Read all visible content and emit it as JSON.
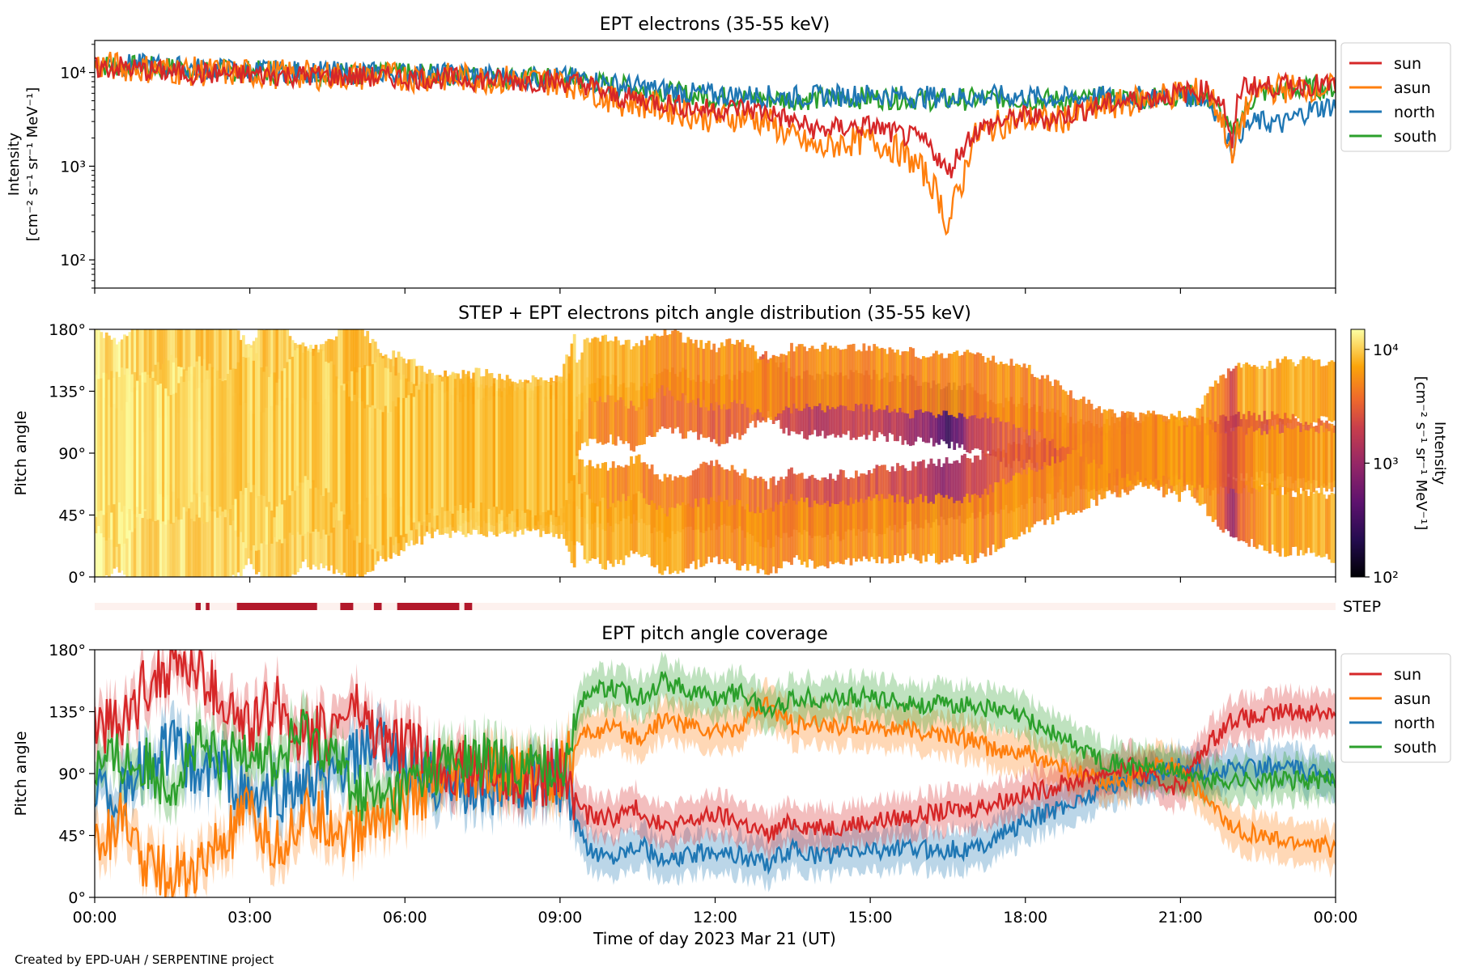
{
  "colors": {
    "sun": "#d62728",
    "asun": "#ff7f0e",
    "north": "#1f77b4",
    "south": "#2ca02c",
    "step_bar": "#b2182b",
    "step_bg": "#fdf1ee"
  },
  "footer": "Created by EPD-UAH / SERPENTINE project",
  "chart_data": [
    {
      "type": "line",
      "title": "EPT electrons (35-55 keV)",
      "ylabel_line1": "Intensity",
      "ylabel_line2": "[cm⁻² s⁻¹ sr⁻¹ MeV⁻¹]",
      "yscale": "log",
      "ylim": [
        50,
        22000
      ],
      "yticks": [
        100,
        1000,
        10000
      ],
      "ytick_labels": [
        "10²",
        "10³",
        "10⁴"
      ],
      "xlim": [
        0,
        24
      ],
      "legend_placement": "right-outside",
      "series": [
        {
          "name": "sun",
          "color": "#d62728",
          "x": [
            0,
            0.5,
            1,
            1.5,
            2,
            3,
            4,
            5,
            6,
            7,
            8,
            9,
            9.5,
            10,
            10.5,
            11,
            11.5,
            12,
            12.5,
            13,
            13.5,
            14,
            14.5,
            15,
            15.5,
            16,
            16.3,
            16.5,
            16.8,
            17,
            17.5,
            18,
            18.5,
            19,
            19.5,
            20,
            20.5,
            21,
            21.5,
            21.8,
            22,
            22.2,
            22.5,
            23,
            23.5,
            24
          ],
          "y": [
            11000,
            11500,
            10500,
            10000,
            9800,
            9500,
            9300,
            9000,
            8800,
            8600,
            8200,
            8000,
            7500,
            5500,
            5200,
            4800,
            4200,
            4000,
            4200,
            3800,
            3000,
            2400,
            2600,
            2700,
            2200,
            1900,
            1300,
            800,
            1600,
            2300,
            3000,
            3400,
            3200,
            3800,
            4500,
            5000,
            5500,
            6000,
            6500,
            5000,
            1300,
            7500,
            7000,
            7200,
            7400,
            7200
          ]
        },
        {
          "name": "asun",
          "color": "#ff7f0e",
          "x": [
            0,
            1,
            2,
            3,
            4,
            5,
            6,
            7,
            8,
            9,
            9.5,
            10,
            10.5,
            11,
            11.5,
            12,
            12.5,
            13,
            13.5,
            14,
            14.5,
            15,
            15.5,
            16,
            16.3,
            16.5,
            16.8,
            17,
            17.5,
            18,
            18.5,
            19,
            19.5,
            20,
            20.5,
            21,
            21.5,
            22,
            22.5,
            23,
            23.5,
            24
          ],
          "y": [
            12000,
            11000,
            10200,
            9800,
            9500,
            9200,
            9000,
            8800,
            8400,
            8000,
            7000,
            5000,
            4700,
            4200,
            3600,
            3200,
            3400,
            3000,
            2000,
            1500,
            1800,
            1900,
            1500,
            900,
            500,
            200,
            700,
            2000,
            2800,
            3200,
            3000,
            3500,
            4200,
            4800,
            5500,
            6000,
            6300,
            1000,
            6500,
            6800,
            7000,
            6800
          ]
        },
        {
          "name": "north",
          "color": "#1f77b4",
          "x": [
            0,
            1,
            2,
            3,
            4,
            5,
            6,
            7,
            8,
            9,
            9.5,
            10,
            10.5,
            11,
            11.5,
            12,
            12.5,
            13,
            13.5,
            14,
            14.5,
            15,
            15.5,
            16,
            16.5,
            17,
            17.5,
            18,
            18.5,
            19,
            19.5,
            20,
            20.5,
            21,
            21.5,
            22,
            22.2,
            22.5,
            23,
            23.5,
            24
          ],
          "y": [
            12500,
            12000,
            11000,
            10500,
            10200,
            10000,
            9800,
            9500,
            9000,
            8800,
            8500,
            7500,
            7000,
            6500,
            6000,
            5800,
            5700,
            5600,
            5500,
            5600,
            5700,
            5800,
            5600,
            5500,
            5500,
            5400,
            5600,
            5500,
            5400,
            5300,
            5500,
            5400,
            5600,
            5800,
            5200,
            1500,
            2500,
            3000,
            2800,
            4000,
            4500
          ]
        },
        {
          "name": "south",
          "color": "#2ca02c",
          "x": [
            0,
            1,
            2,
            3,
            4,
            5,
            6,
            7,
            8,
            9,
            9.5,
            10,
            10.5,
            11,
            11.5,
            12,
            12.5,
            13,
            13.5,
            14,
            14.5,
            15,
            15.5,
            16,
            16.5,
            17,
            17.5,
            18,
            18.5,
            19,
            19.5,
            20,
            20.5,
            21,
            21.5,
            22,
            22.5,
            23,
            23.5,
            24
          ],
          "y": [
            12000,
            11500,
            10800,
            10300,
            10000,
            9800,
            9600,
            9300,
            8900,
            8500,
            8200,
            7200,
            6800,
            6200,
            5800,
            5500,
            5400,
            5300,
            5200,
            5200,
            5300,
            5400,
            5300,
            5200,
            5100,
            5200,
            5300,
            5200,
            5100,
            5000,
            5300,
            5200,
            5500,
            5800,
            5500,
            2000,
            6000,
            6500,
            6800,
            6900
          ]
        }
      ]
    },
    {
      "type": "heatmap",
      "title": "STEP + EPT electrons pitch angle distribution (35-55 keV)",
      "ylabel": "Pitch angle",
      "ylim": [
        0,
        180
      ],
      "yticks": [
        0,
        45,
        90,
        135,
        180
      ],
      "ytick_labels": [
        "0°",
        "45°",
        "90°",
        "135°",
        "180°"
      ],
      "xlim": [
        0,
        24
      ],
      "colorbar": {
        "label_line1": "Intensity",
        "label_line2": "[cm⁻² s⁻¹ sr⁻¹ MeV⁻¹]",
        "scale": "log",
        "range": [
          100,
          15000
        ],
        "ticks": [
          100,
          1000,
          10000
        ],
        "tick_labels": [
          "10²",
          "10³",
          "10⁴"
        ],
        "colormap": "inferno"
      }
    },
    {
      "type": "bar",
      "label": "STEP",
      "xlim": [
        0,
        24
      ],
      "intervals": [
        [
          1.95,
          2.05
        ],
        [
          2.15,
          2.22
        ],
        [
          2.75,
          4.3
        ],
        [
          4.75,
          5.0
        ],
        [
          5.4,
          5.55
        ],
        [
          5.85,
          7.05
        ],
        [
          7.15,
          7.3
        ]
      ]
    },
    {
      "type": "line",
      "title": "EPT pitch angle coverage",
      "ylabel": "Pitch angle",
      "xlabel": "Time of day 2023 Mar 21 (UT)",
      "ylim": [
        0,
        180
      ],
      "yticks": [
        0,
        45,
        90,
        135,
        180
      ],
      "ytick_labels": [
        "0°",
        "45°",
        "90°",
        "135°",
        "180°"
      ],
      "xlim": [
        0,
        24
      ],
      "xticks": [
        0,
        3,
        6,
        9,
        12,
        15,
        18,
        21,
        24
      ],
      "xtick_labels": [
        "00:00",
        "03:00",
        "06:00",
        "09:00",
        "12:00",
        "15:00",
        "18:00",
        "21:00",
        "00:00"
      ],
      "legend_placement": "right-outside",
      "band_halfwidth_deg": 15,
      "series": [
        {
          "name": "sun",
          "color": "#d62728",
          "x": [
            0,
            0.5,
            1,
            1.5,
            2,
            2.5,
            3,
            3.5,
            4,
            4.5,
            5,
            5.5,
            6,
            6.5,
            7,
            7.5,
            8,
            8.5,
            9,
            9.5,
            10,
            10.5,
            11,
            11.5,
            12,
            12.5,
            13,
            13.5,
            14,
            15,
            16,
            17,
            17.5,
            18,
            19,
            19.5,
            20,
            20.5,
            21,
            21.5,
            22,
            22.5,
            23,
            23.5,
            24
          ],
          "y": [
            130,
            120,
            155,
            170,
            165,
            140,
            120,
            145,
            115,
            120,
            140,
            115,
            110,
            100,
            95,
            90,
            85,
            85,
            90,
            60,
            58,
            65,
            50,
            55,
            60,
            55,
            45,
            55,
            50,
            55,
            60,
            65,
            70,
            75,
            85,
            90,
            95,
            85,
            80,
            110,
            130,
            130,
            135,
            135,
            135
          ]
        },
        {
          "name": "asun",
          "color": "#ff7f0e",
          "x": [
            0,
            0.5,
            1,
            1.5,
            2,
            2.5,
            3,
            3.5,
            4,
            4.5,
            5,
            5.5,
            6,
            6.5,
            7,
            7.5,
            8,
            8.5,
            9,
            9.5,
            10,
            10.5,
            11,
            11.5,
            12,
            12.5,
            13,
            13.5,
            14,
            15,
            16,
            17,
            17.5,
            18,
            19,
            19.5,
            20,
            20.5,
            21,
            21.5,
            22,
            22.5,
            23,
            23.5,
            24
          ],
          "y": [
            40,
            55,
            25,
            15,
            20,
            40,
            60,
            35,
            60,
            55,
            45,
            60,
            70,
            80,
            85,
            88,
            90,
            90,
            90,
            120,
            122,
            115,
            130,
            125,
            120,
            125,
            140,
            125,
            125,
            125,
            120,
            115,
            105,
            105,
            90,
            85,
            85,
            95,
            95,
            70,
            50,
            45,
            40,
            40,
            35
          ]
        },
        {
          "name": "north",
          "color": "#1f77b4",
          "x": [
            0,
            0.5,
            1,
            1.5,
            2,
            2.5,
            3,
            3.5,
            4,
            4.5,
            5,
            5.5,
            6,
            6.5,
            7,
            7.5,
            8,
            8.5,
            9,
            9.5,
            10,
            10.5,
            11,
            11.5,
            12,
            12.5,
            13,
            13.5,
            14,
            15,
            16,
            17,
            17.5,
            18,
            19,
            19.5,
            20,
            20.5,
            21,
            21.5,
            22,
            22.5,
            23,
            23.5,
            24
          ],
          "y": [
            85,
            70,
            100,
            110,
            90,
            95,
            70,
            75,
            80,
            80,
            100,
            110,
            95,
            85,
            80,
            80,
            82,
            82,
            80,
            35,
            30,
            40,
            25,
            30,
            35,
            30,
            25,
            35,
            30,
            35,
            35,
            35,
            45,
            55,
            70,
            80,
            85,
            90,
            95,
            90,
            95,
            95,
            95,
            90,
            90
          ]
        },
        {
          "name": "south",
          "color": "#2ca02c",
          "x": [
            0,
            0.5,
            1,
            1.5,
            2,
            2.5,
            3,
            3.5,
            4,
            4.5,
            5,
            5.5,
            6,
            6.5,
            7,
            7.5,
            8,
            8.5,
            9,
            9.5,
            10,
            10.5,
            11,
            11.5,
            12,
            12.5,
            13,
            13.5,
            14,
            15,
            16,
            17,
            17.5,
            18,
            19,
            19.5,
            20,
            20.5,
            21,
            21.5,
            22,
            22.5,
            23,
            23.5,
            24
          ],
          "y": [
            95,
            100,
            95,
            85,
            110,
            95,
            115,
            95,
            120,
            110,
            80,
            70,
            80,
            95,
            98,
            100,
            95,
            95,
            95,
            150,
            152,
            145,
            158,
            150,
            145,
            150,
            135,
            145,
            145,
            145,
            140,
            140,
            135,
            130,
            110,
            100,
            95,
            95,
            90,
            85,
            85,
            85,
            85,
            85,
            85
          ]
        }
      ]
    }
  ]
}
